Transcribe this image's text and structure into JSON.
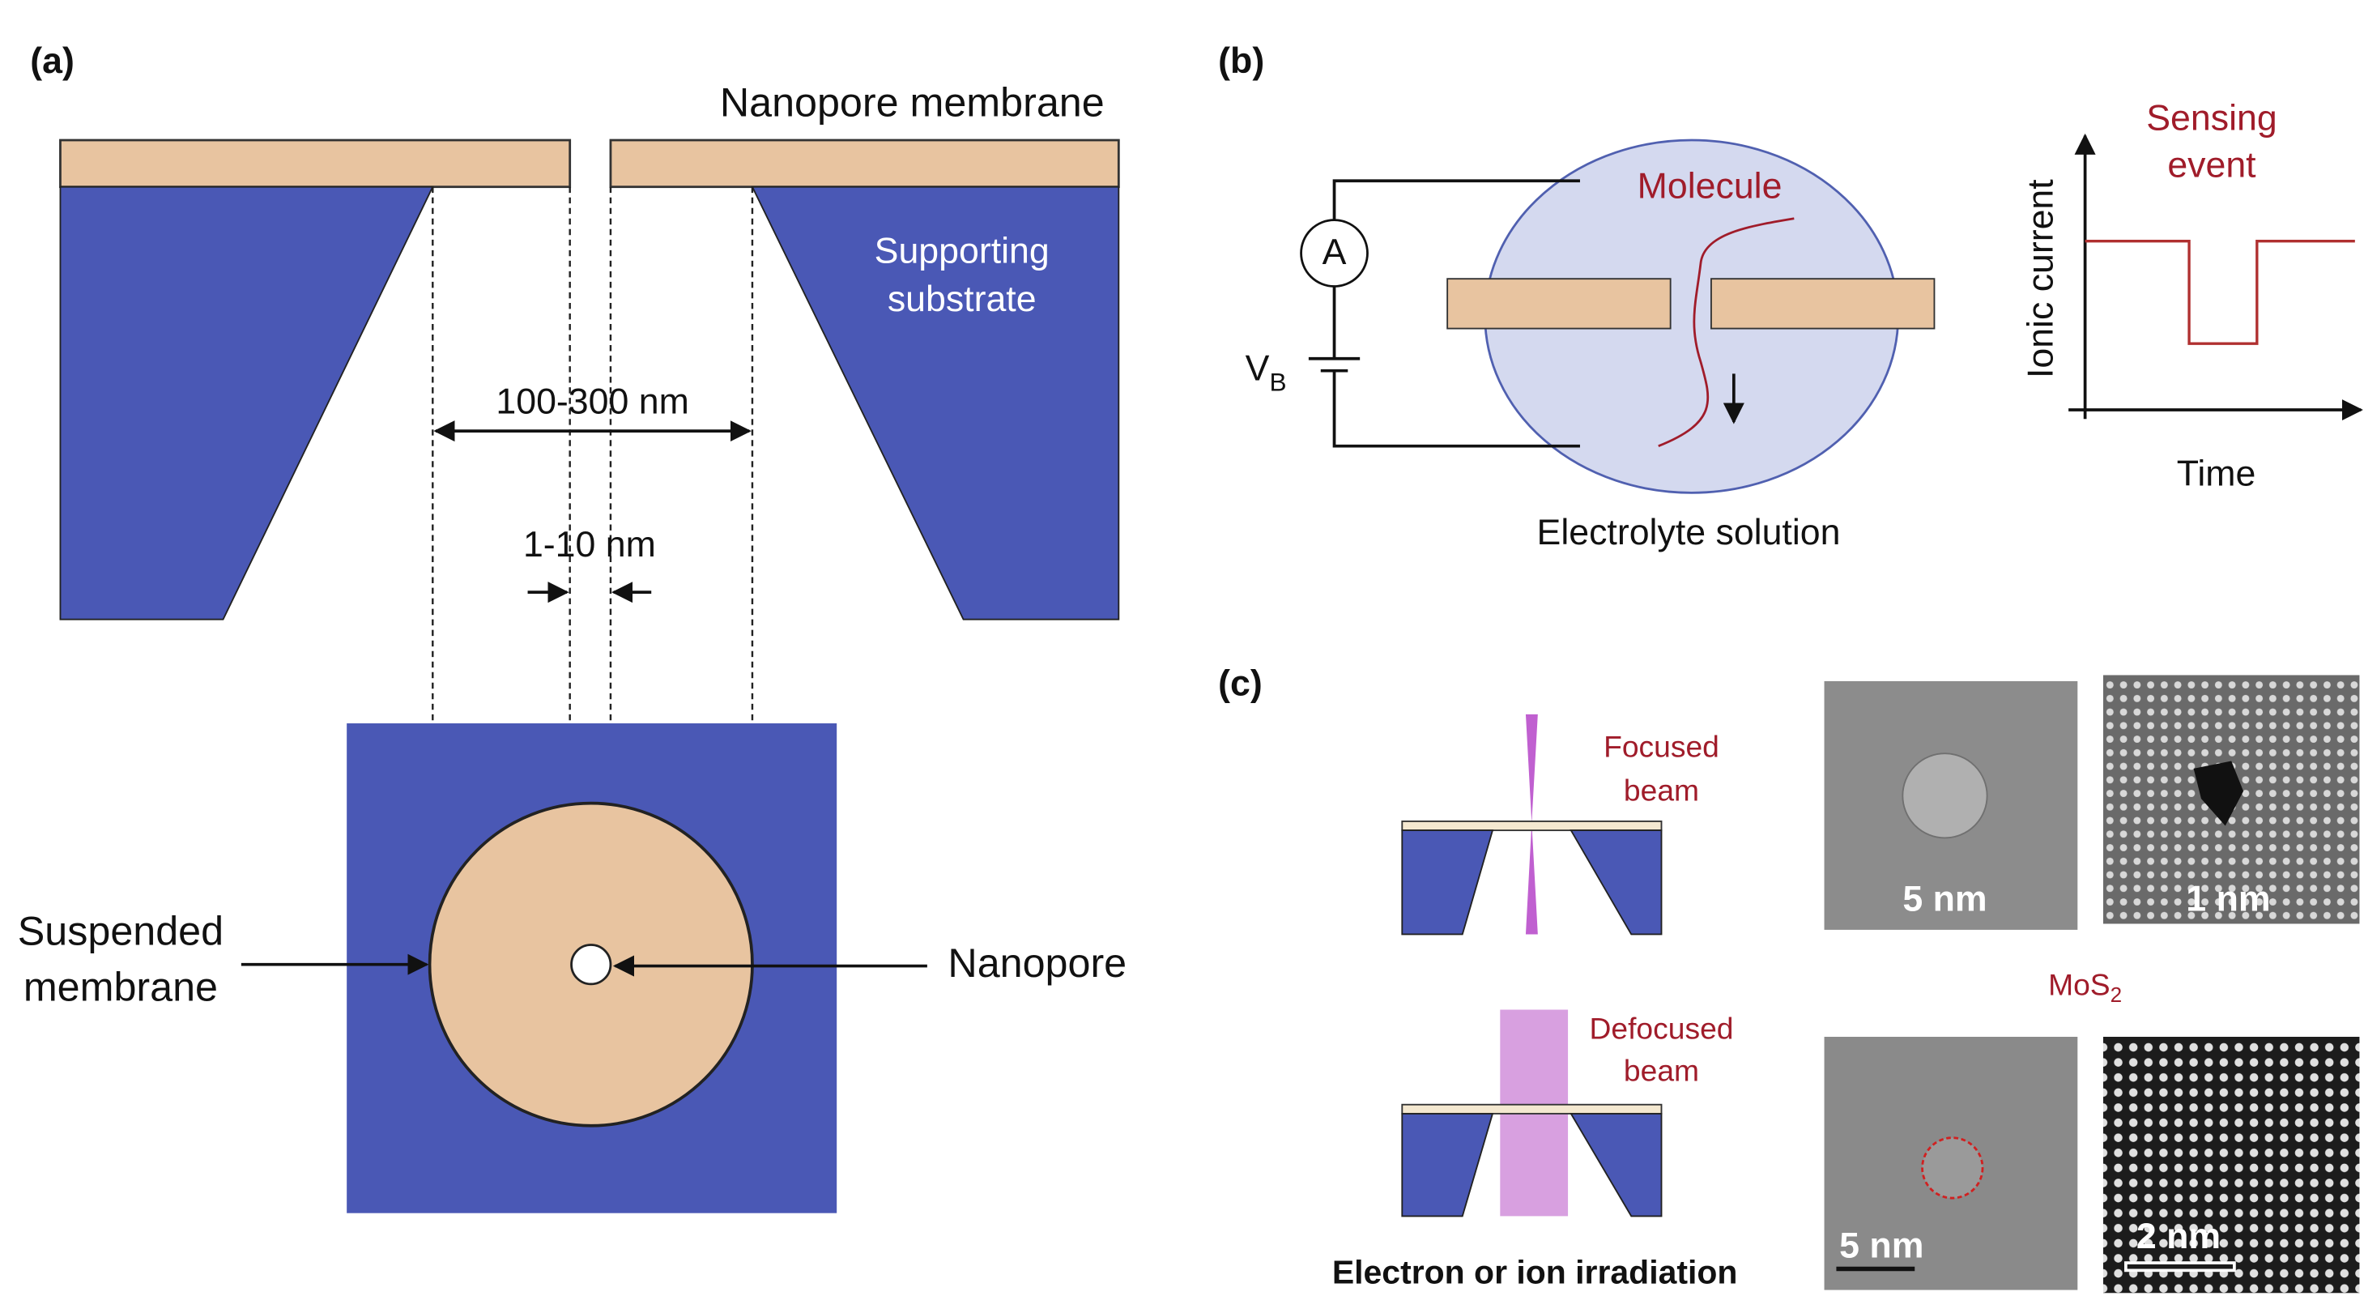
{
  "panel_a": {
    "label": "(a)",
    "nanopore_membrane": "Nanopore membrane",
    "supporting_substrate": [
      "Supporting",
      "substrate"
    ],
    "outer_width": "100-300 nm",
    "pore_width": "1-10 nm",
    "suspended_membrane": [
      "Suspended",
      "membrane"
    ],
    "nanopore": "Nanopore"
  },
  "panel_b": {
    "label": "(b)",
    "ammeter": "A",
    "voltage": "V",
    "voltage_subscript": "B",
    "molecule": "Molecule",
    "electrolyte": "Electrolyte solution",
    "sensing_event": [
      "Sensing",
      "event"
    ],
    "y_axis": "Ionic current",
    "x_axis": "Time"
  },
  "panel_c": {
    "label": "(c)",
    "focused_beam": [
      "Focused",
      "beam"
    ],
    "defocused_beam": [
      "Defocused",
      "beam"
    ],
    "caption": "Electron or ion irradiation",
    "material": "MoS",
    "material_subscript": "2",
    "scale_bars": [
      "5 nm",
      "1 nm",
      "5 nm",
      "2 nm"
    ]
  }
}
